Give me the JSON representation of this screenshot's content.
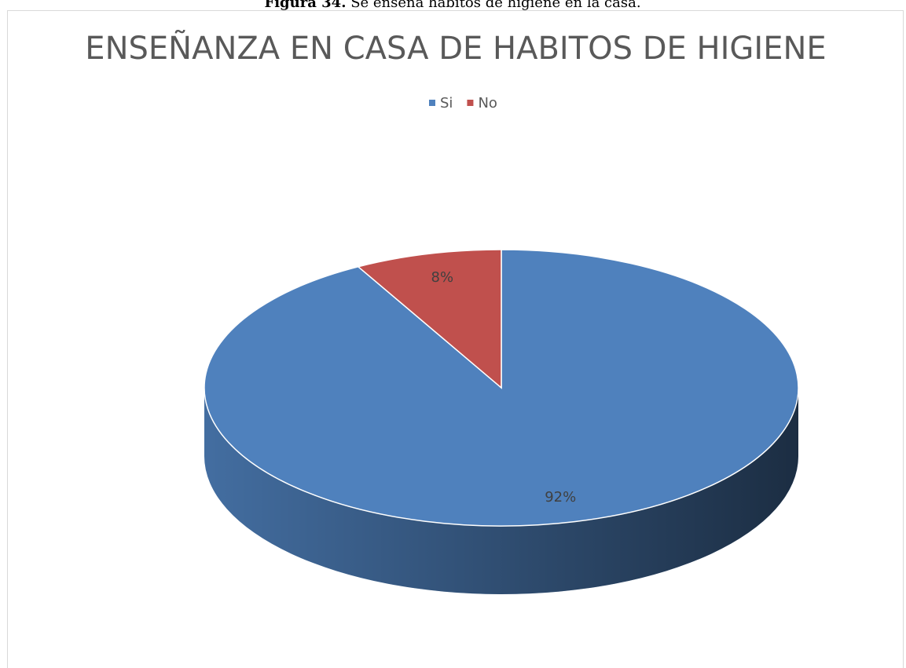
{
  "caption": {
    "label": "Figura 34.",
    "text": "Se enseña hábitos de higiene en la casa."
  },
  "chart_data": {
    "type": "pie",
    "title": "ENSEÑANZA EN CASA DE HABITOS DE HIGIENE",
    "categories": [
      "Si",
      "No"
    ],
    "values": [
      92,
      8
    ],
    "value_labels": [
      "92%",
      "8%"
    ],
    "colors": [
      "#4f81bd",
      "#c0504d"
    ],
    "legend": "top",
    "three_d": true
  }
}
